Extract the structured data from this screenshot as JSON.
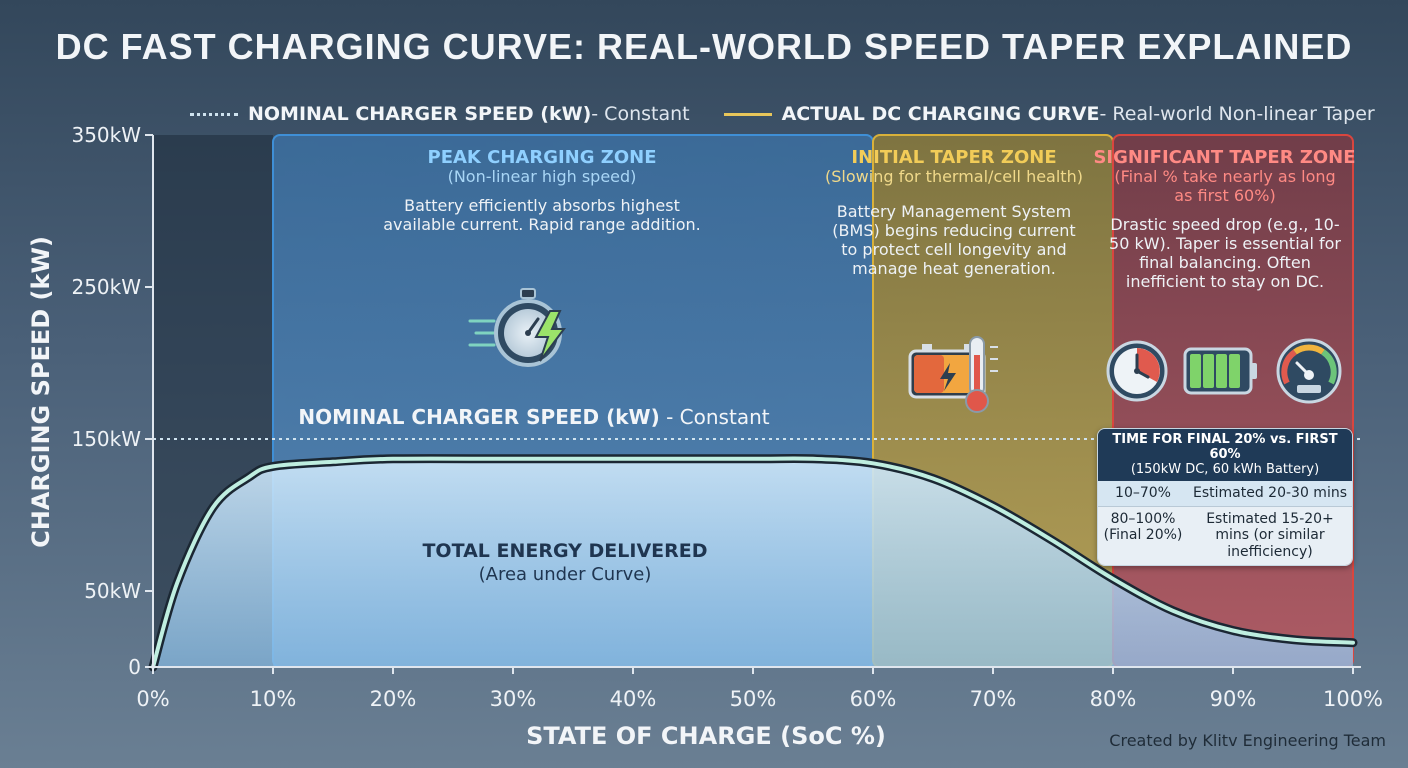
{
  "title": "DC FAST CHARGING CURVE: REAL-WORLD SPEED TAPER EXPLAINED",
  "legend": {
    "nominal_bold": "NOMINAL CHARGER SPEED (kW)",
    "nominal_rest": " - Constant",
    "actual_bold": "ACTUAL DC CHARGING CURVE",
    "actual_rest": " - Real-world Non-linear Taper"
  },
  "nominal_line_label": {
    "bold": "NOMINAL CHARGER SPEED (kW)",
    "rest": " - Constant"
  },
  "zones": {
    "peak": {
      "title": "PEAK CHARGING ZONE",
      "subtitle": "(Non-linear high speed)",
      "desc": "Battery efficiently absorbs highest available current. Rapid range addition."
    },
    "initial": {
      "title": "INITIAL TAPER ZONE",
      "subtitle": "(Slowing for thermal/cell health)",
      "desc": "Battery Management System (BMS) begins reducing current to protect cell longevity and manage heat generation."
    },
    "significant": {
      "title": "SIGNIFICANT TAPER ZONE",
      "subtitle": "(Final % take nearly as long as first 60%)",
      "desc": "Drastic speed drop (e.g., 10-50 kW). Taper is essential for final balancing. Often inefficient to stay on DC."
    }
  },
  "area_label": {
    "title": "TOTAL ENERGY DELIVERED",
    "subtitle": "(Area under Curve)"
  },
  "time_table": {
    "header": "TIME FOR FINAL 20% vs. FIRST 60%",
    "subheader": "(150kW DC, 60 kWh Battery)",
    "rows": [
      {
        "range": "10–70%",
        "time": "Estimated 20-30 mins"
      },
      {
        "range": "80–100% (Final 20%)",
        "time": "Estimated 15-20+ mins (or similar inefficiency)"
      }
    ]
  },
  "icons": [
    "stopwatch-lightning-icon",
    "battery-thermometer-icon",
    "clock-icon",
    "battery-full-icon",
    "speedometer-icon"
  ],
  "xlabel": "STATE OF CHARGE (SoC %)",
  "ylabel": "CHARGING SPEED (kW)",
  "credit": "Created by Klitv Engineering Team",
  "colors": {
    "peak_zone": "#3f8fd6",
    "initial_zone": "#d9b13a",
    "significant_zone": "#d9463f",
    "curve": "#1b2733",
    "curve_glow": "#bfeee0",
    "nominal_line": "#cfe3ef"
  },
  "chart_data": {
    "type": "area",
    "x": [
      0,
      2,
      5,
      8,
      10,
      15,
      20,
      30,
      40,
      50,
      55,
      60,
      65,
      70,
      75,
      80,
      85,
      90,
      95,
      100
    ],
    "series": [
      {
        "name": "ACTUAL DC CHARGING CURVE",
        "values": [
          0,
          55,
          105,
          125,
          132,
          135,
          137,
          137,
          137,
          137,
          137,
          134,
          124,
          106,
          83,
          58,
          37,
          24,
          18,
          16
        ]
      },
      {
        "name": "NOMINAL CHARGER SPEED (kW)",
        "values": [
          150,
          150,
          150,
          150,
          150,
          150,
          150,
          150,
          150,
          150,
          150,
          150,
          150,
          150,
          150,
          150,
          150,
          150,
          150,
          150
        ]
      }
    ],
    "x_ticks": [
      "0%",
      "10%",
      "20%",
      "30%",
      "40%",
      "50%",
      "60%",
      "70%",
      "80%",
      "90%",
      "100%"
    ],
    "y_ticks": [
      {
        "value": 0,
        "label": "0"
      },
      {
        "value": 50,
        "label": "50kW"
      },
      {
        "value": 150,
        "label": "150kW"
      },
      {
        "value": 250,
        "label": "250kW"
      },
      {
        "value": 350,
        "label": "350kW"
      }
    ],
    "zones": [
      {
        "name": "PEAK CHARGING ZONE",
        "from": 10,
        "to": 60
      },
      {
        "name": "INITIAL TAPER ZONE",
        "from": 60,
        "to": 80
      },
      {
        "name": "SIGNIFICANT TAPER ZONE",
        "from": 80,
        "to": 100
      }
    ],
    "xlim": [
      0,
      100
    ],
    "ylim": [
      0,
      350
    ],
    "xlabel": "STATE OF CHARGE (SoC %)",
    "ylabel": "CHARGING SPEED (kW)",
    "title": "DC FAST CHARGING CURVE: REAL-WORLD SPEED TAPER EXPLAINED",
    "grid": false,
    "legend": "top"
  }
}
